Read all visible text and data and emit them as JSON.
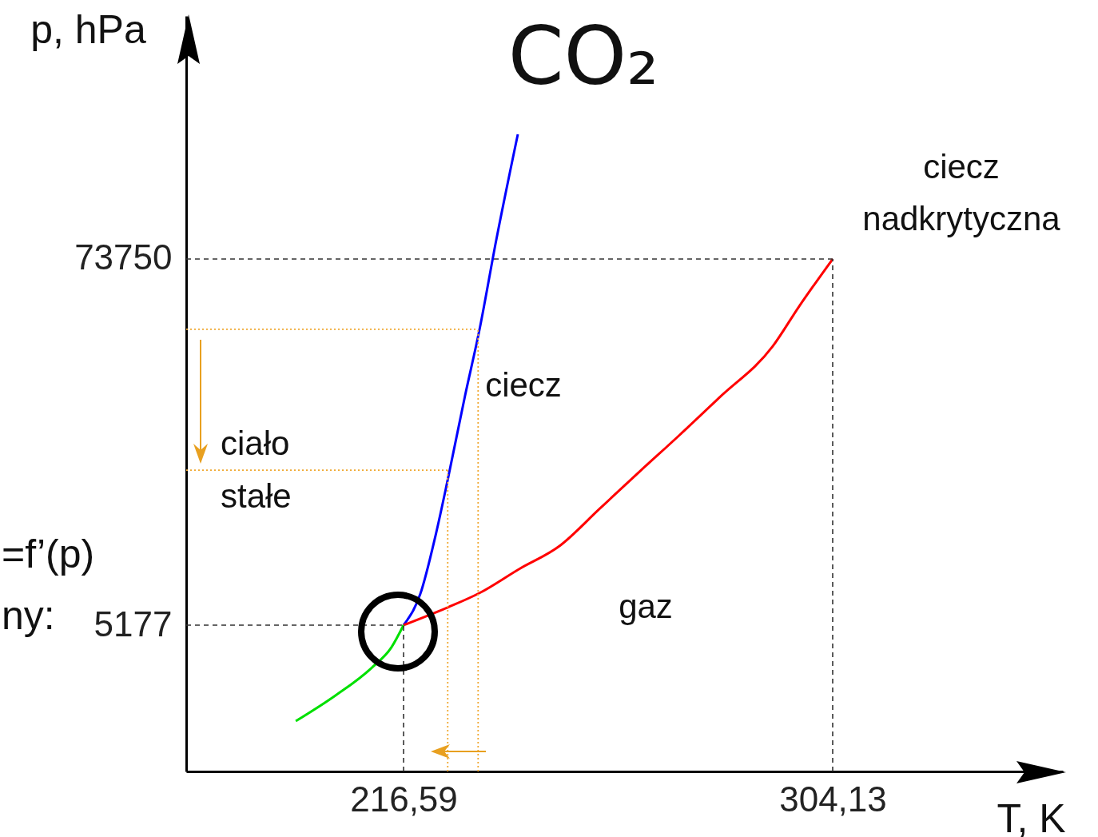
{
  "chart_data": {
    "type": "line",
    "title": "CO₂",
    "xlabel": "T, K",
    "ylabel": "p, hPa",
    "xlim": [
      172.25,
      351.08
    ],
    "ylim": [
      -22220,
      119260
    ],
    "xticks": [
      {
        "value": 216.59,
        "label": "216,59"
      },
      {
        "value": 304.13,
        "label": "304,13"
      }
    ],
    "yticks": [
      5177,
      73750
    ],
    "series": [
      {
        "color": "#0000ff",
        "line_style": "solid",
        "x": [
          216.59,
          220,
          223.1,
          225.6,
          229.1,
          232.1,
          235.5,
          239.9
        ],
        "values": [
          5177,
          11000,
          21900,
          32400,
          48000,
          60600,
          77300,
          97100
        ]
      },
      {
        "color": "#ff0000",
        "line_style": "solid",
        "x": [
          216.59,
          225.6,
          232.1,
          240.2,
          248.4,
          256.5,
          264.7,
          272.8,
          281,
          291.9,
          297.3,
          304.13
        ],
        "values": [
          5177,
          8500,
          11200,
          15700,
          20000,
          26900,
          33900,
          40700,
          47800,
          57400,
          64900,
          73750
        ]
      },
      {
        "color": "#00e000",
        "line_style": "solid",
        "x": [
          194.6,
          202.7,
          210.1,
          214.1,
          216.59
        ],
        "values": [
          -12800,
          -8000,
          -2800,
          1000,
          5177
        ]
      },
      {
        "color": "#333333",
        "line_style": "dashed",
        "x": [
          172.25,
          304.13
        ],
        "values": [
          73750,
          73750
        ]
      },
      {
        "color": "#333333",
        "line_style": "dashed",
        "x": [
          304.13,
          304.13
        ],
        "values": [
          -22220,
          73750
        ]
      },
      {
        "color": "#333333",
        "line_style": "dashed",
        "x": [
          172.25,
          216.59
        ],
        "values": [
          5177,
          5177
        ]
      },
      {
        "color": "#333333",
        "line_style": "dashed",
        "x": [
          216.59,
          216.59
        ],
        "values": [
          -22220,
          5177
        ]
      },
      {
        "color": "#f0a830",
        "line_style": "dotted",
        "x": [
          172.25,
          231.8
        ],
        "values": [
          60600,
          60600
        ]
      },
      {
        "color": "#f0a830",
        "line_style": "dotted",
        "x": [
          231.8,
          231.8
        ],
        "values": [
          -22220,
          60600
        ]
      },
      {
        "color": "#f0a830",
        "line_style": "dotted",
        "x": [
          172.25,
          225.6
        ],
        "values": [
          34200,
          34200
        ]
      },
      {
        "color": "#f0a830",
        "line_style": "dotted",
        "x": [
          225.6,
          225.6
        ],
        "values": [
          -22220,
          34200
        ]
      }
    ],
    "annotations": [
      "ciecz",
      "ciało",
      "stałe",
      "gaz",
      "ciecz",
      "nadkrytyczna",
      "=f’(p)",
      "ny:"
    ]
  }
}
